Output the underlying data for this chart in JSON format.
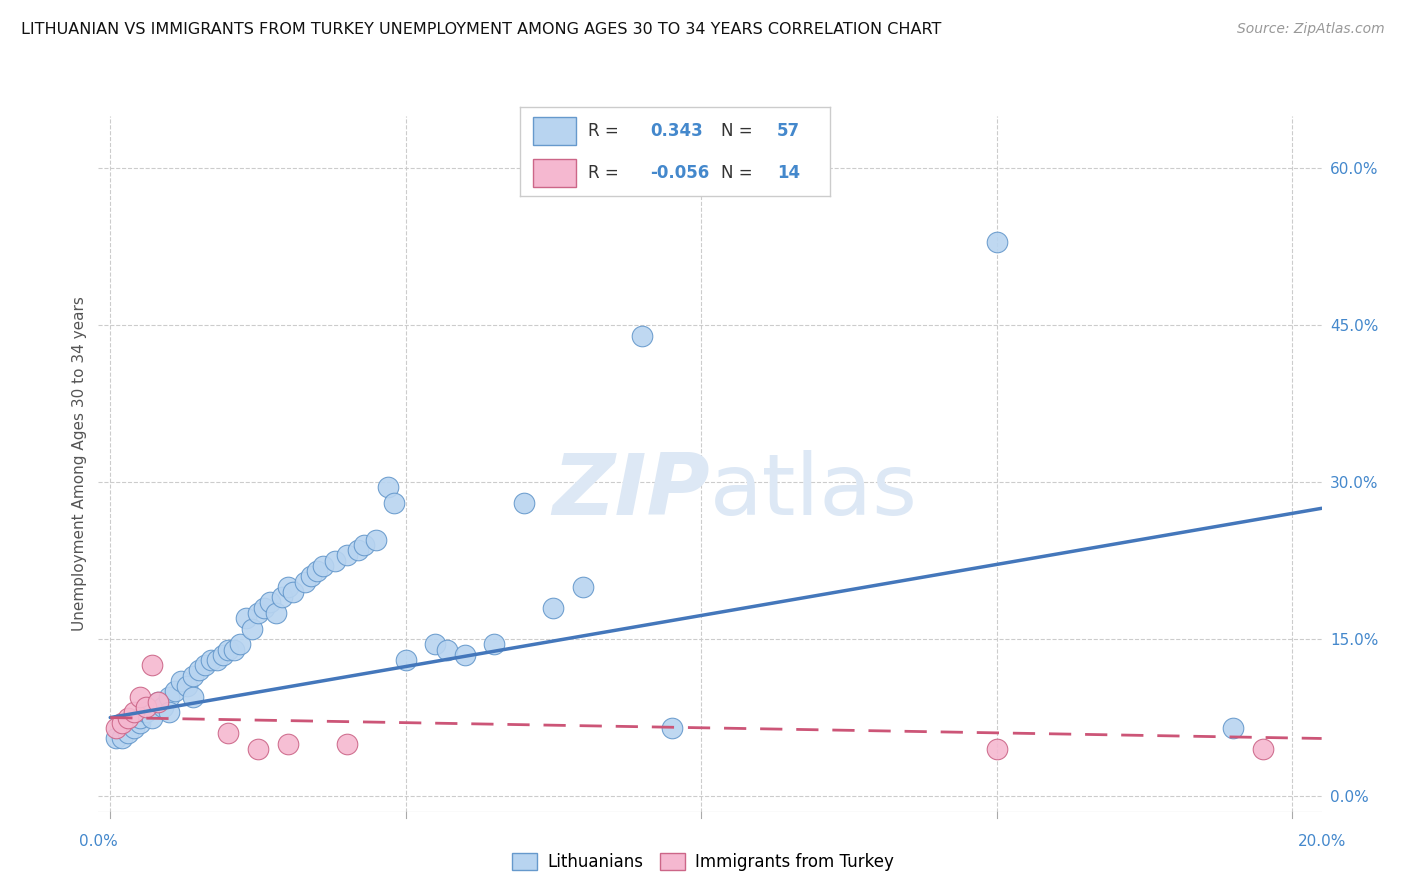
{
  "title": "LITHUANIAN VS IMMIGRANTS FROM TURKEY UNEMPLOYMENT AMONG AGES 30 TO 34 YEARS CORRELATION CHART",
  "source": "Source: ZipAtlas.com",
  "ylabel": "Unemployment Among Ages 30 to 34 years",
  "legend_label1": "Lithuanians",
  "legend_label2": "Immigrants from Turkey",
  "r1": "0.343",
  "n1": "57",
  "r2": "-0.056",
  "n2": "14",
  "blue_color": "#b8d4f0",
  "pink_color": "#f5b8d0",
  "blue_edge_color": "#6699cc",
  "pink_edge_color": "#cc6688",
  "blue_line_color": "#4477bb",
  "pink_line_color": "#cc5577",
  "bg_color": "#ffffff",
  "grid_color": "#cccccc",
  "title_color": "#111111",
  "axis_label_color": "#4488cc",
  "watermark_color": "#dde8f5",
  "blue_scatter": [
    [
      0.001,
      0.055
    ],
    [
      0.002,
      0.055
    ],
    [
      0.003,
      0.06
    ],
    [
      0.004,
      0.065
    ],
    [
      0.005,
      0.07
    ],
    [
      0.005,
      0.075
    ],
    [
      0.006,
      0.08
    ],
    [
      0.007,
      0.075
    ],
    [
      0.008,
      0.09
    ],
    [
      0.009,
      0.085
    ],
    [
      0.01,
      0.095
    ],
    [
      0.01,
      0.08
    ],
    [
      0.011,
      0.1
    ],
    [
      0.012,
      0.11
    ],
    [
      0.013,
      0.105
    ],
    [
      0.014,
      0.095
    ],
    [
      0.014,
      0.115
    ],
    [
      0.015,
      0.12
    ],
    [
      0.016,
      0.125
    ],
    [
      0.017,
      0.13
    ],
    [
      0.018,
      0.13
    ],
    [
      0.019,
      0.135
    ],
    [
      0.02,
      0.14
    ],
    [
      0.021,
      0.14
    ],
    [
      0.022,
      0.145
    ],
    [
      0.023,
      0.17
    ],
    [
      0.024,
      0.16
    ],
    [
      0.025,
      0.175
    ],
    [
      0.026,
      0.18
    ],
    [
      0.027,
      0.185
    ],
    [
      0.028,
      0.175
    ],
    [
      0.029,
      0.19
    ],
    [
      0.03,
      0.2
    ],
    [
      0.031,
      0.195
    ],
    [
      0.033,
      0.205
    ],
    [
      0.034,
      0.21
    ],
    [
      0.035,
      0.215
    ],
    [
      0.036,
      0.22
    ],
    [
      0.038,
      0.225
    ],
    [
      0.04,
      0.23
    ],
    [
      0.042,
      0.235
    ],
    [
      0.043,
      0.24
    ],
    [
      0.045,
      0.245
    ],
    [
      0.047,
      0.295
    ],
    [
      0.048,
      0.28
    ],
    [
      0.05,
      0.13
    ],
    [
      0.055,
      0.145
    ],
    [
      0.057,
      0.14
    ],
    [
      0.06,
      0.135
    ],
    [
      0.065,
      0.145
    ],
    [
      0.07,
      0.28
    ],
    [
      0.075,
      0.18
    ],
    [
      0.08,
      0.2
    ],
    [
      0.09,
      0.44
    ],
    [
      0.095,
      0.065
    ],
    [
      0.15,
      0.53
    ],
    [
      0.19,
      0.065
    ]
  ],
  "pink_scatter": [
    [
      0.001,
      0.065
    ],
    [
      0.002,
      0.07
    ],
    [
      0.003,
      0.075
    ],
    [
      0.004,
      0.08
    ],
    [
      0.005,
      0.095
    ],
    [
      0.006,
      0.085
    ],
    [
      0.007,
      0.125
    ],
    [
      0.008,
      0.09
    ],
    [
      0.02,
      0.06
    ],
    [
      0.025,
      0.045
    ],
    [
      0.03,
      0.05
    ],
    [
      0.04,
      0.05
    ],
    [
      0.15,
      0.045
    ],
    [
      0.195,
      0.045
    ]
  ],
  "xlim": [
    -0.002,
    0.205
  ],
  "ylim": [
    -0.015,
    0.65
  ],
  "yticks": [
    0.0,
    0.15,
    0.3,
    0.45,
    0.6
  ],
  "ytick_labels": [
    "0.0%",
    "15.0%",
    "30.0%",
    "45.0%",
    "60.0%"
  ],
  "blue_line_x": [
    0.0,
    0.205
  ],
  "blue_line_y": [
    0.075,
    0.275
  ],
  "pink_line_x": [
    0.0,
    0.205
  ],
  "pink_line_y": [
    0.075,
    0.055
  ]
}
